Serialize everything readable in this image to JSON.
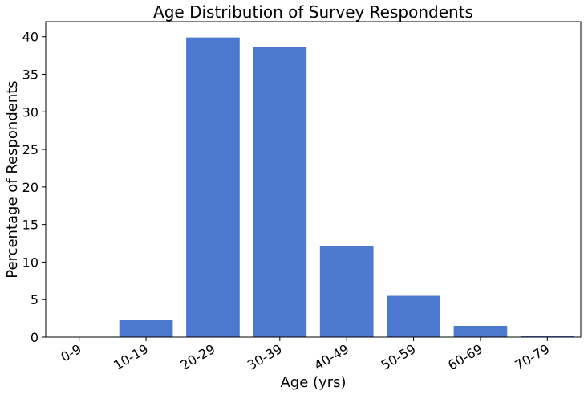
{
  "chart_data": {
    "type": "bar",
    "title": "Age Distribution of Survey Respondents",
    "xlabel": "Age (yrs)",
    "ylabel": "Percentage of Respondents",
    "categories": [
      "0-9",
      "10-19",
      "20-29",
      "30-39",
      "40-49",
      "50-59",
      "60-69",
      "70-79"
    ],
    "values": [
      0,
      2.3,
      39.9,
      38.6,
      12.1,
      5.5,
      1.5,
      0.2
    ],
    "ylim": [
      0,
      42
    ],
    "yticks": [
      0,
      5,
      10,
      15,
      20,
      25,
      30,
      35,
      40
    ],
    "grid": false,
    "legend": "none",
    "bar_color": "#4c78d0"
  }
}
